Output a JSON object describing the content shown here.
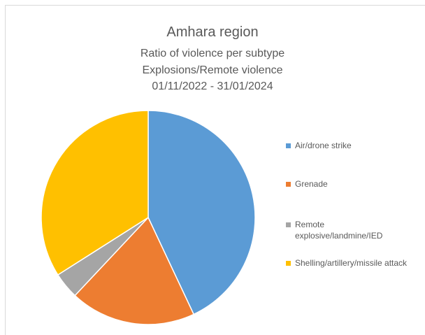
{
  "chart_data": {
    "type": "pie",
    "title": "Amhara region",
    "subtitle": [
      "Ratio of violence per subtype",
      "Explosions/Remote violence",
      "01/11/2022 - 31/01/2024"
    ],
    "categories": [
      "Air/drone strike",
      "Grenade",
      "Remote explosive/landmine/IED",
      "Shelling/artillery/missile attack"
    ],
    "values": [
      43,
      19,
      4,
      34
    ],
    "colors": [
      "#5b9bd5",
      "#ed7d31",
      "#a5a5a5",
      "#ffc000"
    ],
    "legend": "right"
  }
}
